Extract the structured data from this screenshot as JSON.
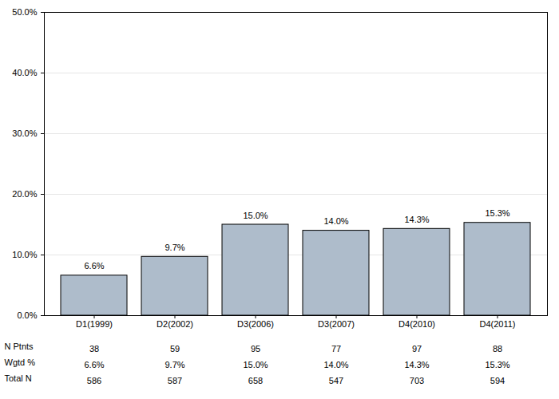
{
  "chart_data": {
    "type": "bar",
    "categories": [
      "D1(1999)",
      "D2(2002)",
      "D3(2006)",
      "D3(2007)",
      "D4(2010)",
      "D4(2011)"
    ],
    "values": [
      6.6,
      9.7,
      15.0,
      14.0,
      14.3,
      15.3
    ],
    "value_labels": [
      "6.6%",
      "9.7%",
      "15.0%",
      "14.0%",
      "14.3%",
      "15.3%"
    ],
    "data_labels": true,
    "color": "#aebccb",
    "ylim": [
      0,
      50
    ],
    "yticks": [
      {
        "value": 0,
        "label": "0.0%"
      },
      {
        "value": 10,
        "label": "10.0%"
      },
      {
        "value": 20,
        "label": "20.0%"
      },
      {
        "value": 30,
        "label": "30.0%"
      },
      {
        "value": 40,
        "label": "40.0%"
      },
      {
        "value": 50,
        "label": "50.0%"
      }
    ],
    "grid": true,
    "table": {
      "rows": [
        {
          "label": "N Ptnts",
          "values": [
            38,
            59,
            95,
            77,
            97,
            88
          ]
        },
        {
          "label": "Wgtd %",
          "values": [
            "6.6%",
            "9.7%",
            "15.0%",
            "14.0%",
            "14.3%",
            "15.3%"
          ]
        },
        {
          "label": "Total N",
          "values": [
            586,
            587,
            658,
            547,
            703,
            594
          ]
        }
      ]
    }
  }
}
